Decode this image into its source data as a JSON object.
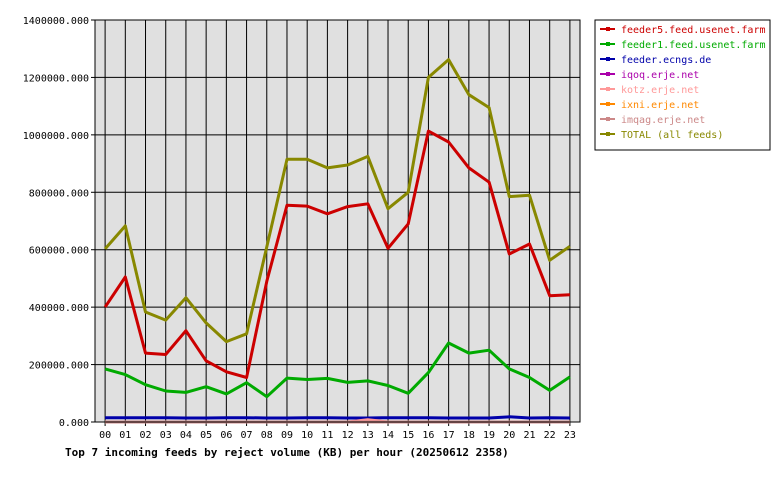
{
  "chart_data": {
    "type": "line",
    "title": "Top 7 incoming feeds by reject volume (KB) per hour (20250612 2358)",
    "xlabel": "",
    "ylabel": "",
    "categories": [
      "00",
      "01",
      "02",
      "03",
      "04",
      "05",
      "06",
      "07",
      "08",
      "09",
      "10",
      "11",
      "12",
      "13",
      "14",
      "15",
      "16",
      "17",
      "18",
      "19",
      "20",
      "21",
      "22",
      "23"
    ],
    "ylim": [
      0,
      1400000
    ],
    "yticks": [
      "0.000",
      "200000.000",
      "400000.000",
      "600000.000",
      "800000.000",
      "1000000.000",
      "1200000.000",
      "1400000.000"
    ],
    "grid": true,
    "legend_position": "right",
    "series": [
      {
        "name": "feeder5.feed.usenet.farm",
        "color": "#cc0000",
        "values": [
          400000,
          505000,
          240000,
          235000,
          318000,
          213000,
          175000,
          155000,
          490000,
          755000,
          752000,
          725000,
          750000,
          760000,
          605000,
          690000,
          1013000,
          975000,
          885000,
          835000,
          585000,
          620000,
          440000,
          443000
        ]
      },
      {
        "name": "feeder1.feed.usenet.farm",
        "color": "#00aa00",
        "values": [
          185000,
          165000,
          130000,
          108000,
          103000,
          123000,
          98000,
          137000,
          88000,
          153000,
          148000,
          152000,
          138000,
          143000,
          127000,
          100000,
          172000,
          275000,
          240000,
          250000,
          185000,
          155000,
          110000,
          157000
        ]
      },
      {
        "name": "feeder.ecngs.de",
        "color": "#0000aa",
        "values": [
          15000,
          15000,
          15000,
          15000,
          14000,
          14000,
          15000,
          15000,
          14000,
          14000,
          15000,
          15000,
          14000,
          14000,
          15000,
          15000,
          15000,
          14000,
          14000,
          14000,
          18000,
          14000,
          15000,
          14000
        ]
      },
      {
        "name": "iqoq.erje.net",
        "color": "#aa00aa",
        "values": [
          0,
          0,
          0,
          0,
          0,
          0,
          0,
          0,
          0,
          0,
          0,
          0,
          0,
          0,
          0,
          0,
          0,
          0,
          0,
          0,
          0,
          0,
          0,
          0
        ]
      },
      {
        "name": "kotz.erje.net",
        "color": "#ff9999",
        "values": [
          0,
          0,
          0,
          0,
          0,
          0,
          0,
          0,
          0,
          0,
          0,
          0,
          0,
          8000,
          0,
          0,
          0,
          0,
          0,
          0,
          0,
          0,
          0,
          0
        ]
      },
      {
        "name": "ixni.erje.net",
        "color": "#ff8800",
        "values": [
          0,
          0,
          0,
          0,
          0,
          0,
          0,
          0,
          0,
          0,
          0,
          0,
          0,
          0,
          0,
          0,
          0,
          0,
          0,
          0,
          0,
          0,
          0,
          0
        ]
      },
      {
        "name": "imqag.erje.net",
        "color": "#cc8888",
        "values": [
          0,
          0,
          0,
          0,
          0,
          0,
          0,
          0,
          0,
          0,
          0,
          0,
          0,
          0,
          0,
          0,
          0,
          0,
          0,
          0,
          0,
          0,
          0,
          0
        ]
      },
      {
        "name": "TOTAL (all feeds)",
        "color": "#888800",
        "values": [
          603000,
          683000,
          383000,
          355000,
          433000,
          345000,
          280000,
          307000,
          610000,
          915000,
          915000,
          885000,
          895000,
          925000,
          743000,
          800000,
          1200000,
          1262000,
          1140000,
          1095000,
          785000,
          790000,
          563000,
          612000
        ]
      }
    ]
  }
}
